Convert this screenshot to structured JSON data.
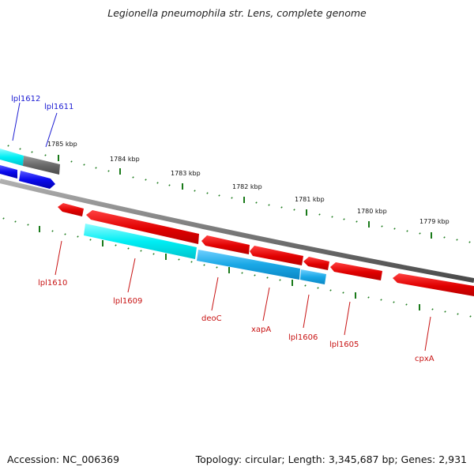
{
  "title": "Legionella pneumophila str. Lens, complete genome",
  "footer": {
    "accession": "Accession: NC_006369",
    "summary": "Topology: circular; Length: 3,345,687 bp; Genes: 2,931"
  },
  "colors": {
    "backbone": "#7a7a7a",
    "tick": "#1a7a1a",
    "forward_gene_label": "#1a1ad2",
    "reverse_gene_label": "#c81414",
    "red_gene": "#e60000",
    "cyan_gene": "#00e0e8",
    "blue_gene": "#1aa8e6",
    "dark_blue_gene": "#0a0aee",
    "gray_gene": "#6a6a6a"
  },
  "scale_labels": [
    "1785 kbp",
    "1784 kbp",
    "1783 kbp",
    "1782 kbp",
    "1781 kbp",
    "1780 kbp",
    "1779 kbp"
  ],
  "forward_genes": [
    {
      "name": "lpl1612",
      "label": "lpl1612",
      "color": "cyan"
    },
    {
      "name": "lpl1611",
      "label": "lpl1611",
      "color": "gray"
    }
  ],
  "reverse_genes": [
    {
      "name": "lpl1610",
      "label": "lpl1610",
      "color": "red"
    },
    {
      "name": "lpl1609",
      "label": "lpl1609",
      "color": "cyan"
    },
    {
      "name": "deoC",
      "label": "deoC",
      "color": "blue"
    },
    {
      "name": "xapA",
      "label": "xapA",
      "color": "red"
    },
    {
      "name": "lpl1606",
      "label": "lpl1606",
      "color": "blue"
    },
    {
      "name": "lpl1605",
      "label": "lpl1605",
      "color": "red"
    },
    {
      "name": "cpxA",
      "label": "cpxA",
      "color": "red"
    }
  ]
}
